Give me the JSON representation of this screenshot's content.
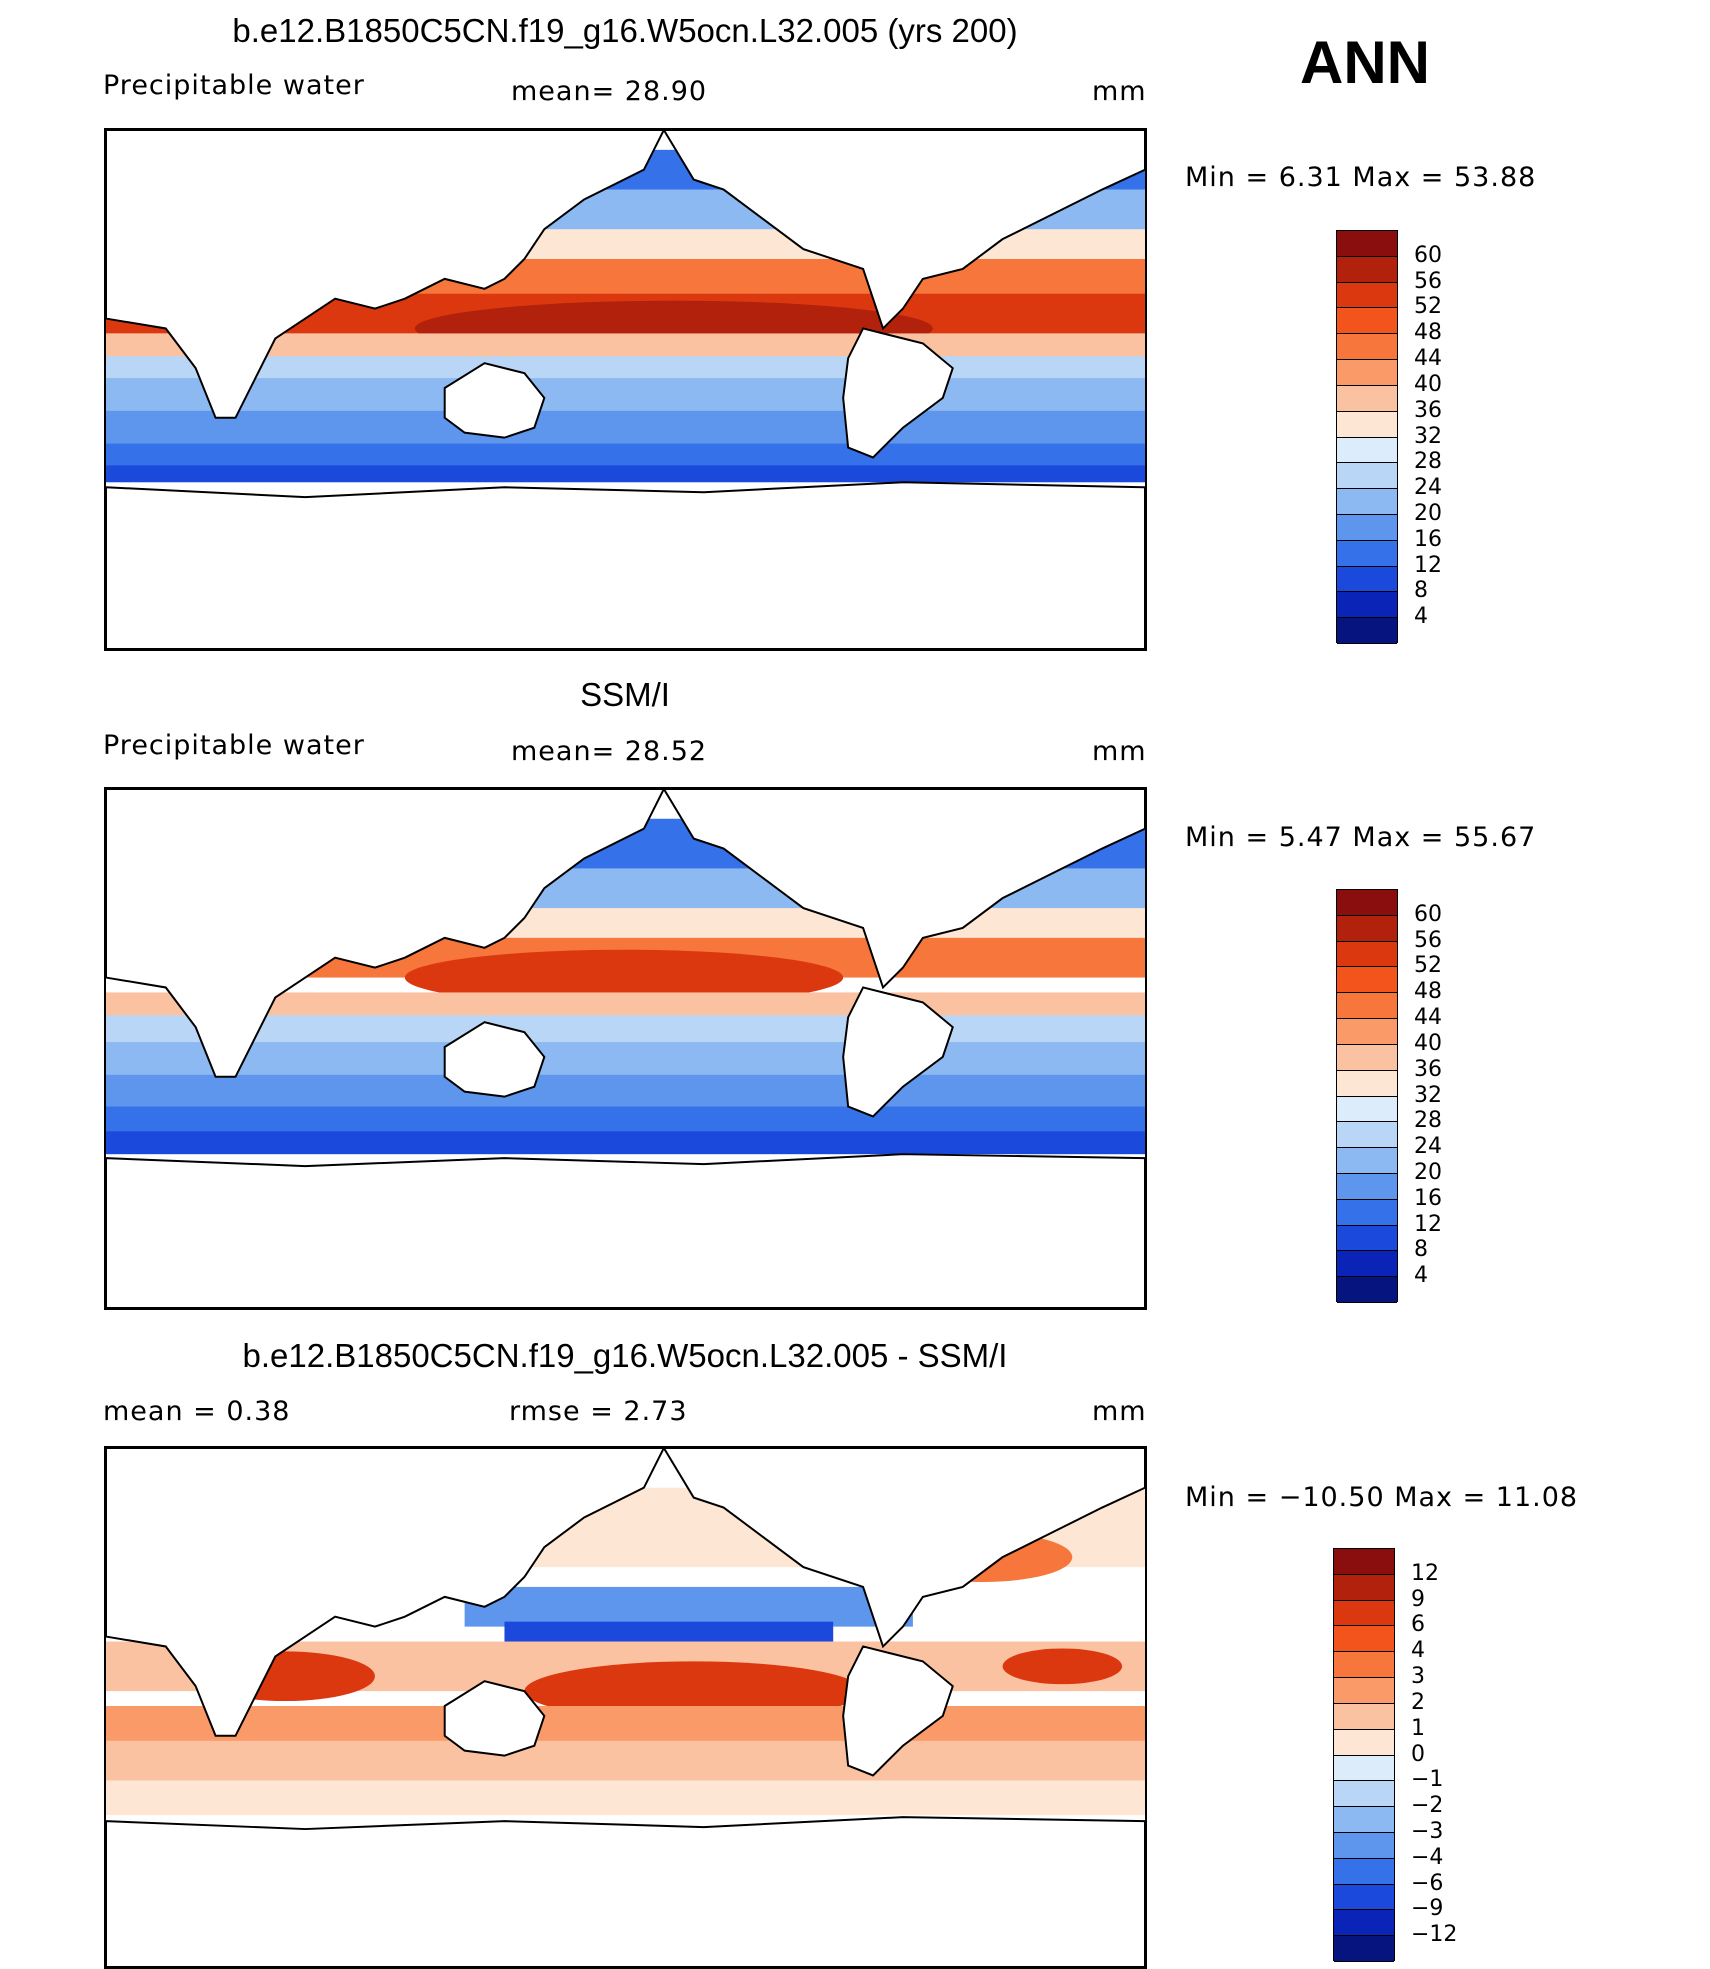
{
  "season": "ANN",
  "panels": [
    {
      "title": "b.e12.B1850C5CN.f19_g16.W5ocn.L32.005 (yrs 200)",
      "left_label": "Precipitable  water",
      "mid_label": "mean=   28.90",
      "units": "mm",
      "minmax": "Min  =     6.31  Max  =     53.88",
      "colorbar": {
        "ticks": [
          "60",
          "56",
          "52",
          "48",
          "44",
          "40",
          "36",
          "32",
          "28",
          "24",
          "20",
          "16",
          "12",
          "8",
          "4"
        ],
        "colors": [
          "#8a0e0e",
          "#b2210c",
          "#dc3810",
          "#f2541c",
          "#f6763c",
          "#f99a68",
          "#fbc2a1",
          "#fde6d3",
          "#dcecfa",
          "#b9d6f6",
          "#8db9f2",
          "#5e96ee",
          "#3571e8",
          "#1b49db",
          "#0a24b8",
          "#061480"
        ]
      }
    },
    {
      "title": "SSM/I",
      "left_label": "Precipitable  water",
      "mid_label": "mean=   28.52",
      "units": "mm",
      "minmax": "Min  =     5.47  Max  =     55.67",
      "colorbar": {
        "ticks": [
          "60",
          "56",
          "52",
          "48",
          "44",
          "40",
          "36",
          "32",
          "28",
          "24",
          "20",
          "16",
          "12",
          "8",
          "4"
        ],
        "colors": [
          "#8a0e0e",
          "#b2210c",
          "#dc3810",
          "#f2541c",
          "#f6763c",
          "#f99a68",
          "#fbc2a1",
          "#fde6d3",
          "#dcecfa",
          "#b9d6f6",
          "#8db9f2",
          "#5e96ee",
          "#3571e8",
          "#1b49db",
          "#0a24b8",
          "#061480"
        ]
      }
    },
    {
      "title": "b.e12.B1850C5CN.f19_g16.W5ocn.L32.005 - SSM/I",
      "left_label": "mean  =     0.38",
      "mid_label": "rmse  =     2.73",
      "units": "mm",
      "minmax": "Min  = −10.50  Max  =     11.08",
      "colorbar": {
        "ticks": [
          "12",
          "9",
          "6",
          "4",
          "3",
          "2",
          "1",
          "0",
          "−1",
          "−2",
          "−3",
          "−4",
          "−6",
          "−9",
          "−12"
        ],
        "colors": [
          "#8a0e0e",
          "#b2210c",
          "#dc3810",
          "#f2541c",
          "#f6763c",
          "#f99a68",
          "#fbc2a1",
          "#fde6d3",
          "#dcecfa",
          "#b9d6f6",
          "#8db9f2",
          "#5e96ee",
          "#3571e8",
          "#1b49db",
          "#0a24b8",
          "#061480"
        ]
      }
    }
  ]
}
